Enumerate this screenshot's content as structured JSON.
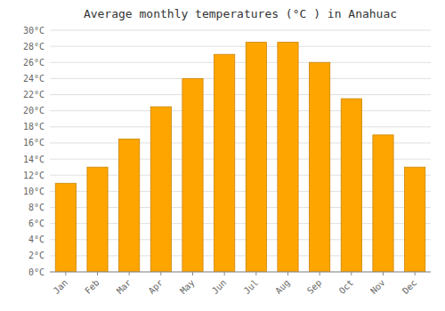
{
  "chart_data": {
    "type": "bar",
    "title": "Average monthly temperatures (°C ) in Anahuac",
    "categories": [
      "Jan",
      "Feb",
      "Mar",
      "Apr",
      "May",
      "Jun",
      "Jul",
      "Aug",
      "Sep",
      "Oct",
      "Nov",
      "Dec"
    ],
    "values": [
      11,
      13,
      16.5,
      20.5,
      24,
      27,
      28.5,
      28.5,
      26,
      21.5,
      17,
      13
    ],
    "color": "#FFA500",
    "ylim": [
      0,
      30
    ],
    "yticks": [
      {
        "value": 0,
        "label": "0°C"
      },
      {
        "value": 2,
        "label": "2°C"
      },
      {
        "value": 4,
        "label": "4°C"
      },
      {
        "value": 6,
        "label": "6°C"
      },
      {
        "value": 8,
        "label": "8°C"
      },
      {
        "value": 10,
        "label": "10°C"
      },
      {
        "value": 12,
        "label": "12°C"
      },
      {
        "value": 14,
        "label": "14°C"
      },
      {
        "value": 16,
        "label": "16°C"
      },
      {
        "value": 18,
        "label": "18°C"
      },
      {
        "value": 20,
        "label": "20°C"
      },
      {
        "value": 22,
        "label": "22°C"
      },
      {
        "value": 24,
        "label": "24°C"
      },
      {
        "value": 26,
        "label": "26°C"
      },
      {
        "value": 28,
        "label": "28°C"
      },
      {
        "value": 30,
        "label": "30°C"
      }
    ],
    "grid": true
  }
}
